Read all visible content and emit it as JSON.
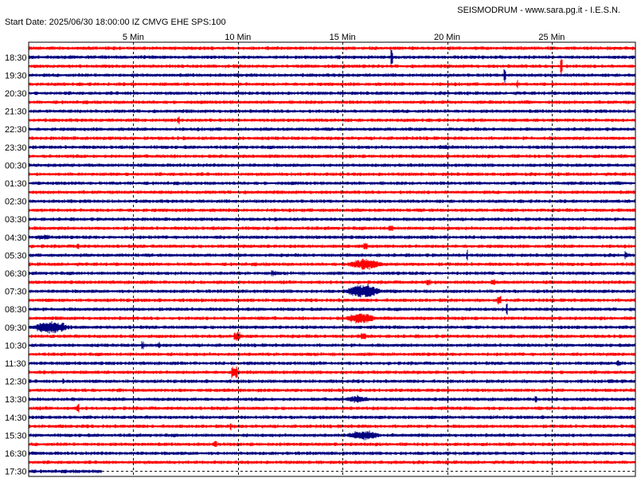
{
  "header": {
    "source": "SEISMODRUM - www.sara.pg.it - I.E.S.N.",
    "start_info": "Start Date: 2025/06/30 18:00:00 IZ CMVG EHE SPS:100"
  },
  "colors": {
    "red": "#ff0000",
    "blue": "#000080",
    "grid": "#000000",
    "frame": "#000000",
    "background": "#ffffff"
  },
  "chart_data": {
    "type": "line",
    "title": "",
    "x_unit": "min",
    "xlim": [
      0,
      29
    ],
    "x_ticks": [
      {
        "value": 5,
        "label": "5 Min"
      },
      {
        "value": 10,
        "label": "10 Min"
      },
      {
        "value": 15,
        "label": "15 Min"
      },
      {
        "value": 20,
        "label": "20 Min"
      },
      {
        "value": 25,
        "label": "25 Min"
      }
    ],
    "row_labels": [
      "18:30",
      "19:30",
      "20:30",
      "21:30",
      "22:30",
      "23:30",
      "00:30",
      "01:30",
      "02:30",
      "03:30",
      "04:30",
      "05:30",
      "06:30",
      "07:30",
      "08:30",
      "09:30",
      "10:30",
      "11:30",
      "12:30",
      "13:30",
      "14:30",
      "15:30",
      "16:30",
      "17:30"
    ],
    "row_count": 48,
    "row_colors": [
      "red",
      "blue"
    ],
    "last_trace_length_min": 3.5,
    "grid": true,
    "events": [
      {
        "row": 1,
        "minute": 17.3,
        "amplitude": 1.0,
        "duration_min": 0.1
      },
      {
        "row": 2,
        "minute": 25.4,
        "amplitude": 1.2,
        "duration_min": 0.1
      },
      {
        "row": 3,
        "minute": 22.7,
        "amplitude": 0.9,
        "duration_min": 0.1
      },
      {
        "row": 4,
        "minute": 23.3,
        "amplitude": 0.5,
        "duration_min": 0.1
      },
      {
        "row": 8,
        "minute": 7.1,
        "amplitude": 0.6,
        "duration_min": 0.1
      },
      {
        "row": 11,
        "minute": 19.6,
        "amplitude": 0.3,
        "duration_min": 0.5
      },
      {
        "row": 20,
        "minute": 17.2,
        "amplitude": 0.4,
        "duration_min": 0.2
      },
      {
        "row": 21,
        "minute": 0.1,
        "amplitude": 0.35,
        "duration_min": 1.7
      },
      {
        "row": 22,
        "minute": 2.3,
        "amplitude": 0.5,
        "duration_min": 0.1
      },
      {
        "row": 22,
        "minute": 16.0,
        "amplitude": 0.5,
        "duration_min": 0.2
      },
      {
        "row": 23,
        "minute": 20.9,
        "amplitude": 0.7,
        "duration_min": 0.1
      },
      {
        "row": 23,
        "minute": 28.5,
        "amplitude": 0.5,
        "duration_min": 0.1
      },
      {
        "row": 24,
        "minute": 15.0,
        "amplitude": 0.7,
        "duration_min": 2.8
      },
      {
        "row": 25,
        "minute": 11.6,
        "amplitude": 0.4,
        "duration_min": 0.2
      },
      {
        "row": 26,
        "minute": 19.0,
        "amplitude": 0.4,
        "duration_min": 0.2
      },
      {
        "row": 26,
        "minute": 22.1,
        "amplitude": 0.4,
        "duration_min": 0.2
      },
      {
        "row": 27,
        "minute": 15.0,
        "amplitude": 0.9,
        "duration_min": 2.6
      },
      {
        "row": 28,
        "minute": 22.4,
        "amplitude": 0.5,
        "duration_min": 0.2
      },
      {
        "row": 29,
        "minute": 22.8,
        "amplitude": 0.8,
        "duration_min": 0.1
      },
      {
        "row": 30,
        "minute": 15.0,
        "amplitude": 0.7,
        "duration_min": 2.3
      },
      {
        "row": 30,
        "minute": 10.9,
        "amplitude": 0.3,
        "duration_min": 0.2
      },
      {
        "row": 31,
        "minute": 0.0,
        "amplitude": 0.8,
        "duration_min": 2.8
      },
      {
        "row": 32,
        "minute": 9.8,
        "amplitude": 0.6,
        "duration_min": 0.3
      },
      {
        "row": 32,
        "minute": 15.9,
        "amplitude": 0.5,
        "duration_min": 0.2
      },
      {
        "row": 33,
        "minute": 5.4,
        "amplitude": 0.5,
        "duration_min": 0.1
      },
      {
        "row": 33,
        "minute": 6.2,
        "amplitude": 0.4,
        "duration_min": 0.1
      },
      {
        "row": 35,
        "minute": 28.1,
        "amplitude": 0.4,
        "duration_min": 0.2
      },
      {
        "row": 36,
        "minute": 9.7,
        "amplitude": 0.8,
        "duration_min": 0.3
      },
      {
        "row": 37,
        "minute": 1.6,
        "amplitude": 0.4,
        "duration_min": 0.1
      },
      {
        "row": 39,
        "minute": 15.0,
        "amplitude": 0.5,
        "duration_min": 1.9
      },
      {
        "row": 39,
        "minute": 24.2,
        "amplitude": 0.6,
        "duration_min": 0.1
      },
      {
        "row": 40,
        "minute": 2.3,
        "amplitude": 0.6,
        "duration_min": 0.1
      },
      {
        "row": 42,
        "minute": 9.6,
        "amplitude": 0.5,
        "duration_min": 0.1
      },
      {
        "row": 43,
        "minute": 15.0,
        "amplitude": 0.6,
        "duration_min": 2.6
      },
      {
        "row": 44,
        "minute": 8.8,
        "amplitude": 0.4,
        "duration_min": 0.2
      }
    ]
  }
}
